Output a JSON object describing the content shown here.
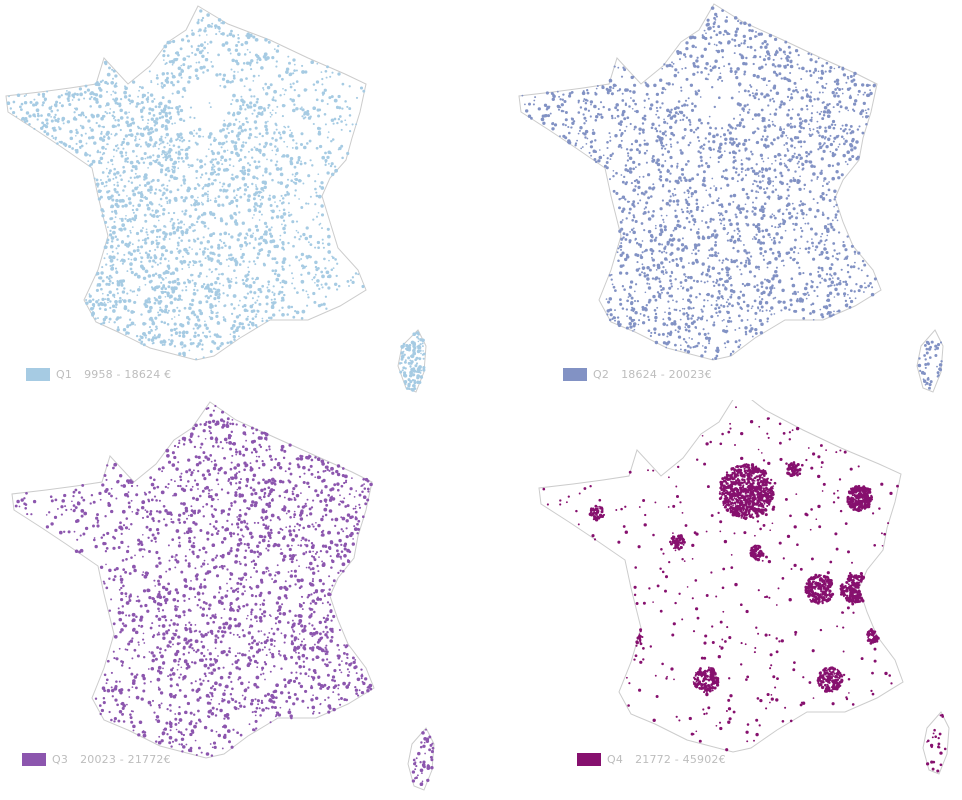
{
  "outline_color": "#cccccc",
  "quartiles": [
    {
      "id": "q1",
      "quartile": "Q1",
      "range": "9958 - 18624 €",
      "color": "#a6cbe3",
      "pattern": "west-center"
    },
    {
      "id": "q2",
      "quartile": "Q2",
      "range": "18624 - 20023€",
      "color": "#8292c4",
      "pattern": "widespread"
    },
    {
      "id": "q3",
      "quartile": "Q3",
      "range": "20023 - 21772€",
      "color": "#8c56ae",
      "pattern": "south-east"
    },
    {
      "id": "q4",
      "quartile": "Q4",
      "range": "21772 - 45902€",
      "color": "#86106e",
      "pattern": "urban"
    }
  ]
}
